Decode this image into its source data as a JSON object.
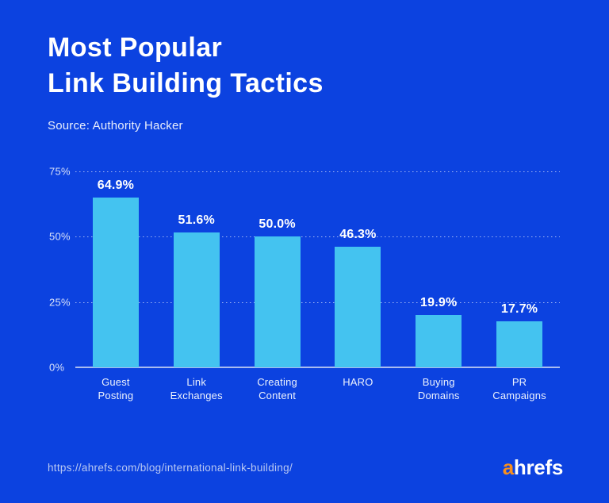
{
  "header": {
    "title_line1": "Most Popular",
    "title_line2": "Link Building Tactics",
    "source": "Source: Authority Hacker"
  },
  "footer": {
    "url": "https://ahrefs.com/blog/international-link-building/",
    "logo": {
      "prefix": "a",
      "rest": "hrefs",
      "prefix_color": "#F78F1E"
    }
  },
  "colors": {
    "background": "#0C42E0",
    "bar": "#44C3F0",
    "axis_line": "#A9BCF0",
    "gridline": "rgba(255,255,255,0.60)",
    "title_text": "#FFFFFF",
    "tick_text": "#D9E1F9",
    "url_text": "#B9C8F2",
    "logo_orange": "#F78F1E"
  },
  "chart_data": {
    "type": "bar",
    "title": "Most Popular Link Building Tactics",
    "source": "Authority Hacker",
    "categories": [
      "Guest Posting",
      "Link Exchanges",
      "Creating Content",
      "HARO",
      "Buying Domains",
      "PR Campaigns"
    ],
    "category_lines": [
      [
        "Guest",
        "Posting"
      ],
      [
        "Link",
        "Exchanges"
      ],
      [
        "Creating",
        "Content"
      ],
      [
        "HARO"
      ],
      [
        "Buying",
        "Domains"
      ],
      [
        "PR",
        "Campaigns"
      ]
    ],
    "values": [
      64.9,
      51.6,
      50.0,
      46.3,
      19.9,
      17.7
    ],
    "value_labels": [
      "64.9%",
      "51.6%",
      "50.0%",
      "46.3%",
      "19.9%",
      "17.7%"
    ],
    "xlabel": "",
    "ylabel": "",
    "ylim": [
      0,
      75
    ],
    "yticks": [
      0,
      25,
      50,
      75
    ],
    "ytick_labels": [
      "0%",
      "25%",
      "50%",
      "75%"
    ],
    "grid": "horizontal dotted lines at 25/50/75, solid axis line at 0",
    "legend": "none"
  }
}
